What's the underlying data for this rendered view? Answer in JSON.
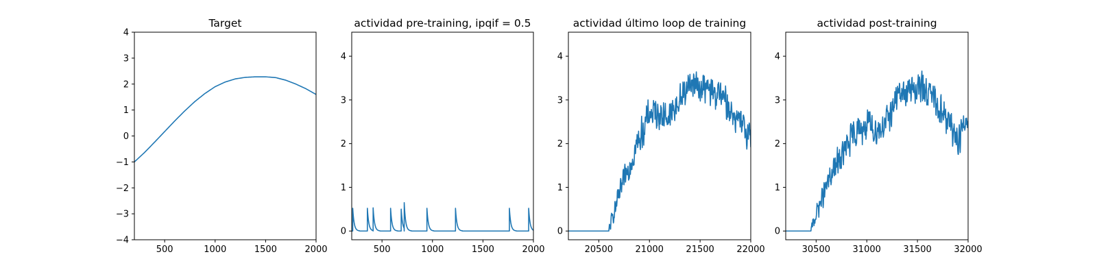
{
  "figure": {
    "background": "#ffffff",
    "line_color": "#1f77b4"
  },
  "chart_data": [
    {
      "type": "line",
      "title": "Target",
      "xlim": [
        200,
        2000
      ],
      "ylim": [
        -4,
        4
      ],
      "xticks": [
        500,
        1000,
        1500,
        2000
      ],
      "yticks": [
        -4,
        -3,
        -2,
        -1,
        0,
        1,
        2,
        3,
        4
      ],
      "grid": false,
      "series": [
        {
          "x": [
            200,
            300,
            400,
            500,
            600,
            700,
            800,
            900,
            1000,
            1100,
            1200,
            1300,
            1400,
            1500,
            1600,
            1700,
            1800,
            1900,
            2000
          ],
          "y": [
            -1.0,
            -0.64,
            -0.24,
            0.17,
            0.58,
            0.97,
            1.33,
            1.64,
            1.9,
            2.08,
            2.2,
            2.26,
            2.28,
            2.28,
            2.25,
            2.15,
            2.0,
            1.82,
            1.6
          ]
        }
      ]
    },
    {
      "type": "line",
      "title": "actividad pre-training, ipqif = 0.5",
      "xlim": [
        200,
        2000
      ],
      "ylim": [
        -0.2,
        4.55
      ],
      "xticks": [
        500,
        1000,
        1500,
        2000
      ],
      "yticks": [
        0,
        1,
        2,
        3,
        4
      ],
      "grid": false,
      "spikes": [
        {
          "x": 210,
          "peak": 0.52
        },
        {
          "x": 355,
          "peak": 0.52
        },
        {
          "x": 412,
          "peak": 0.53
        },
        {
          "x": 585,
          "peak": 0.52
        },
        {
          "x": 690,
          "peak": 0.5
        },
        {
          "x": 720,
          "peak": 0.65
        },
        {
          "x": 945,
          "peak": 0.52
        },
        {
          "x": 1228,
          "peak": 0.52
        },
        {
          "x": 1762,
          "peak": 0.52
        },
        {
          "x": 1953,
          "peak": 0.52
        }
      ]
    },
    {
      "type": "line",
      "title": "actividad último loop de training",
      "xlim": [
        20200,
        22000
      ],
      "ylim": [
        -0.2,
        4.55
      ],
      "xticks": [
        20500,
        21000,
        21500,
        22000
      ],
      "yticks": [
        0,
        1,
        2,
        3,
        4
      ],
      "grid": false,
      "series": [
        {
          "x": [
            20200,
            20600,
            20640,
            20700,
            20800,
            20900,
            21000,
            21100,
            21200,
            21300,
            21400,
            21500,
            21600,
            21700,
            21800,
            21900,
            22000
          ],
          "y": [
            0.0,
            0.0,
            0.35,
            0.8,
            1.5,
            2.1,
            2.7,
            2.7,
            2.6,
            3.0,
            3.4,
            3.3,
            3.2,
            3.1,
            2.8,
            2.4,
            2.2
          ]
        }
      ]
    },
    {
      "type": "line",
      "title": "actividad post-training",
      "xlim": [
        30200,
        32000
      ],
      "ylim": [
        -0.2,
        4.55
      ],
      "xticks": [
        30500,
        31000,
        31500,
        32000
      ],
      "yticks": [
        0,
        1,
        2,
        3,
        4
      ],
      "grid": false,
      "series": [
        {
          "x": [
            30200,
            30450,
            30500,
            30600,
            30700,
            30800,
            30900,
            31000,
            31100,
            31200,
            31300,
            31400,
            31500,
            31600,
            31700,
            31800,
            31900,
            32000
          ],
          "y": [
            0.0,
            0.0,
            0.4,
            1.0,
            1.5,
            1.9,
            2.3,
            2.4,
            2.3,
            2.5,
            3.1,
            3.2,
            3.3,
            3.2,
            2.9,
            2.5,
            2.1,
            2.6
          ]
        }
      ]
    }
  ]
}
